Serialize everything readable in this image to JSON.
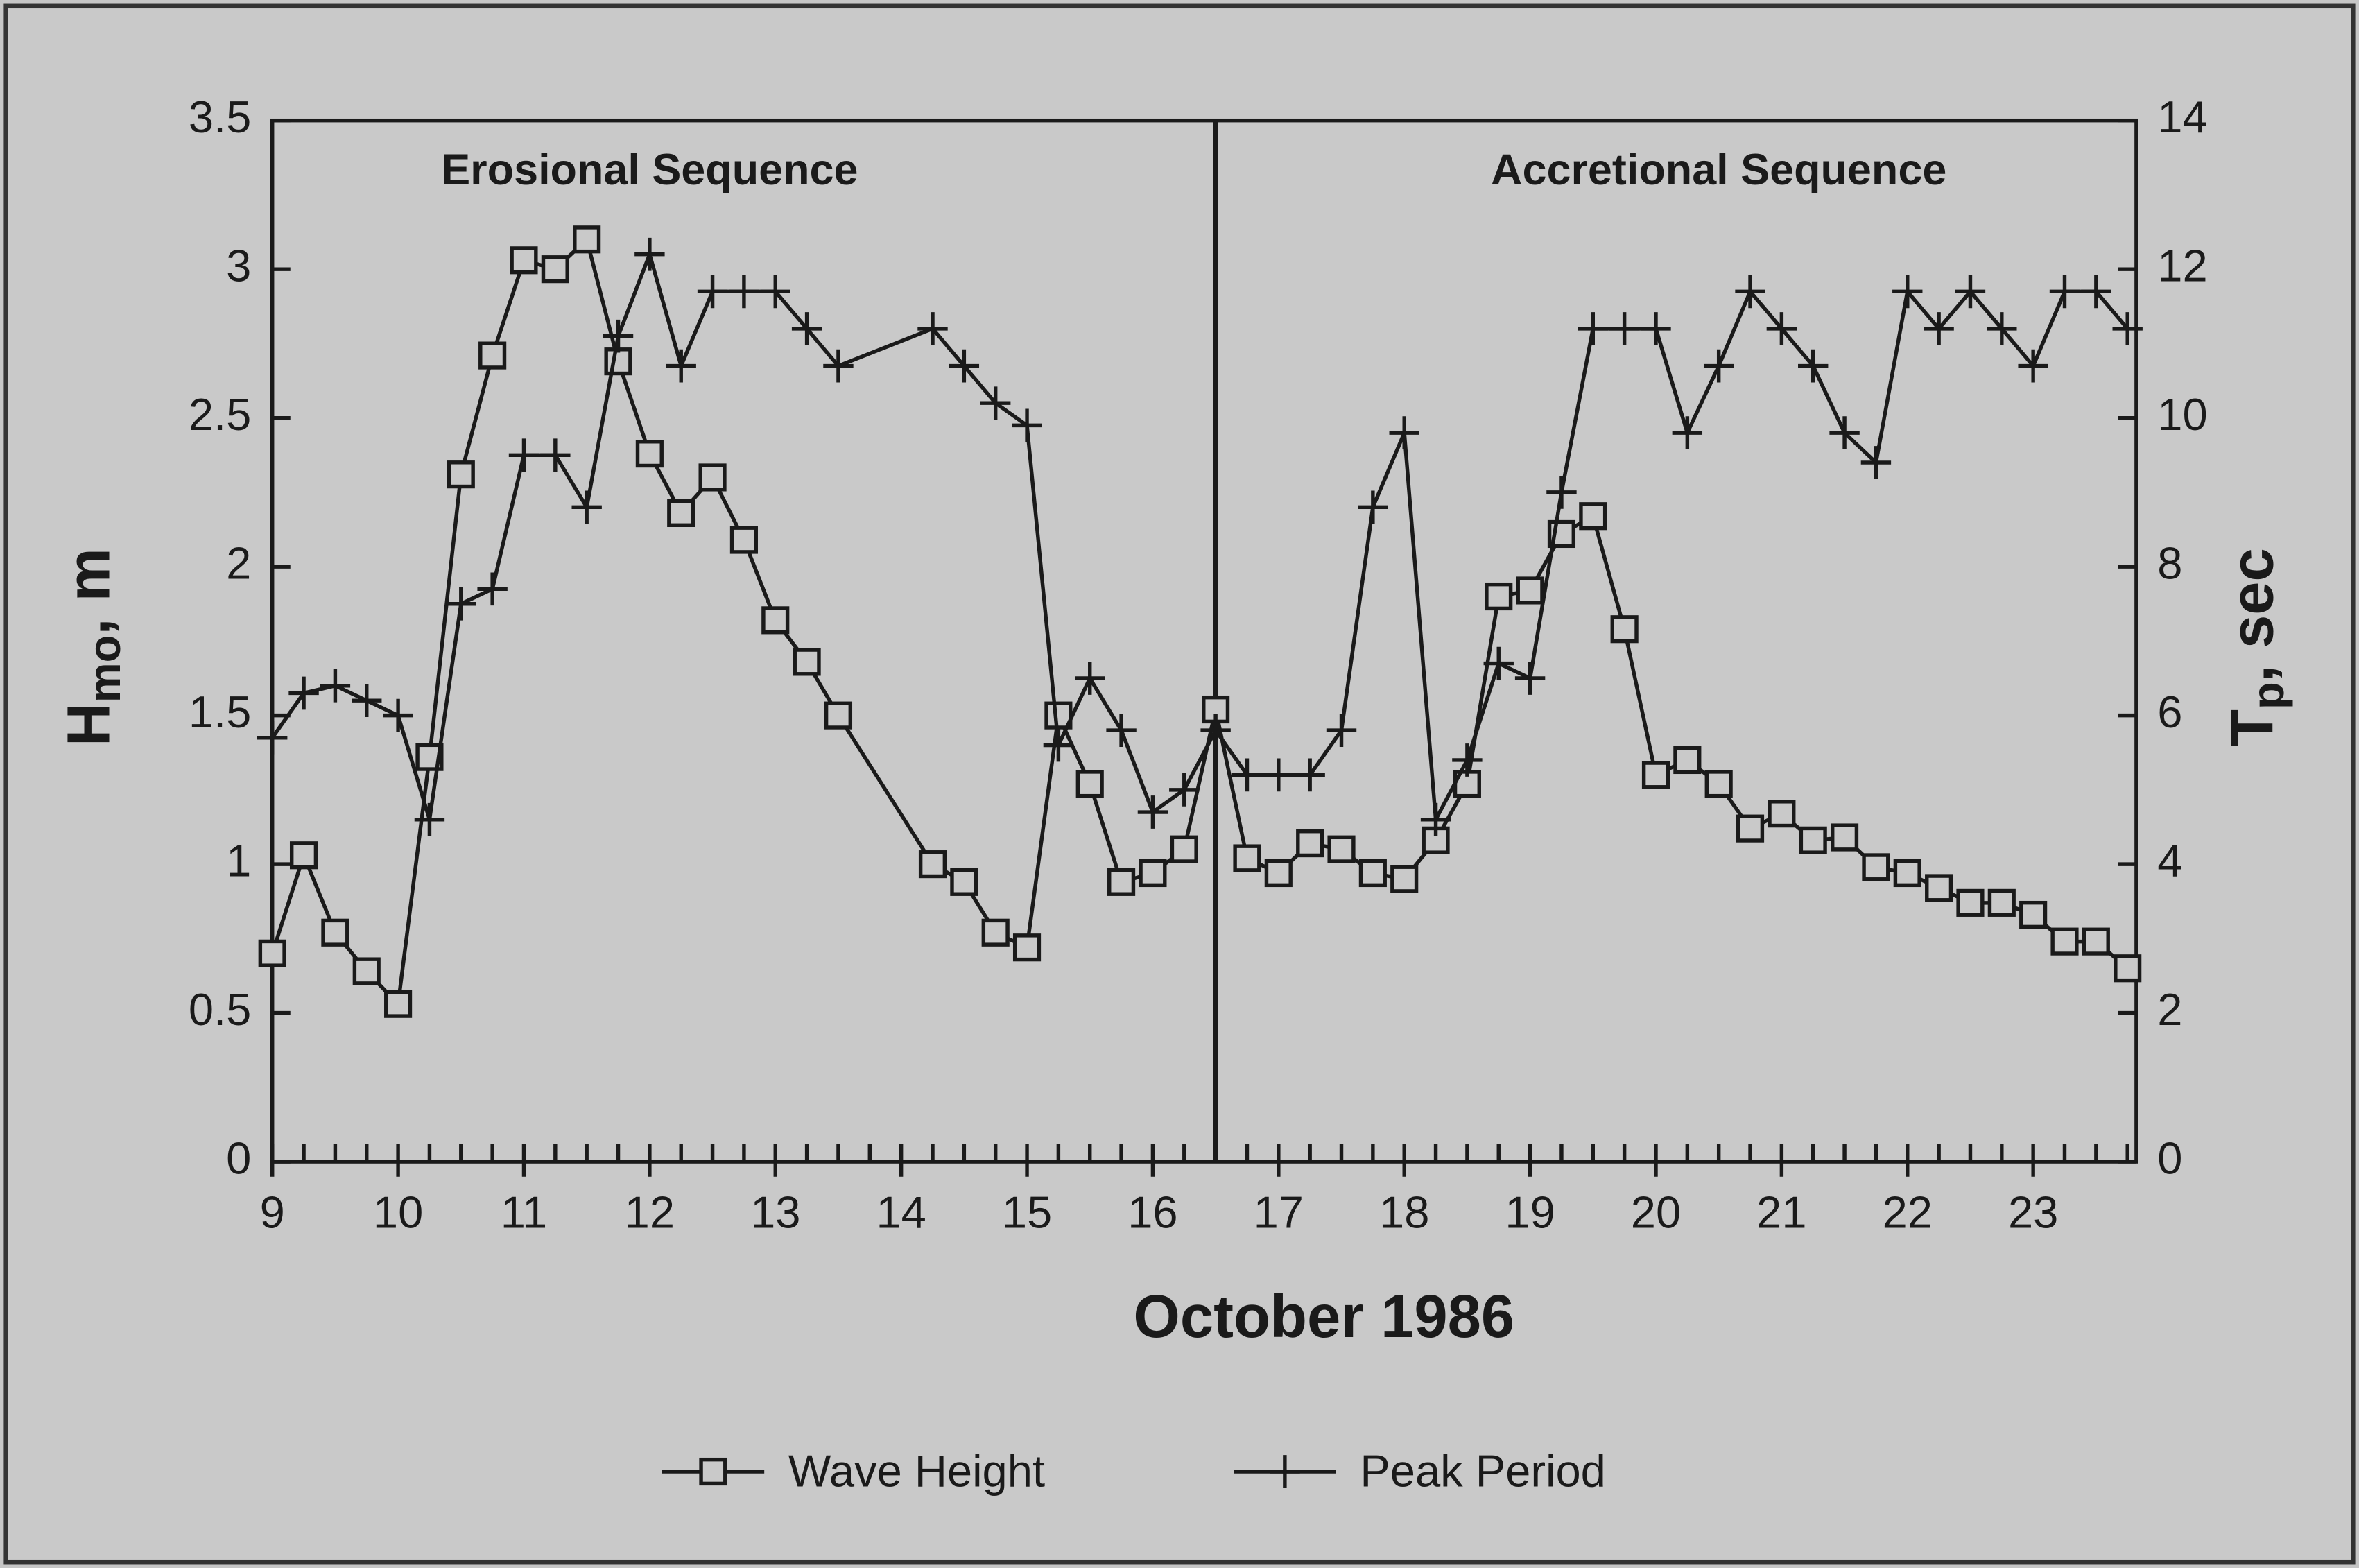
{
  "chart_data": {
    "type": "line",
    "x_label": "October 1986",
    "y_label": {
      "main": "H",
      "sub": "mo",
      "rest": ", m"
    },
    "y2_label": {
      "main": "T",
      "sub": "p",
      "rest": ", sec"
    },
    "annotations": [
      {
        "text": "Erosional Sequence",
        "x": 12.0
      },
      {
        "text": "Accretional Sequence",
        "x": 20.5
      }
    ],
    "divider_x": 16.5,
    "x": [
      9,
      9.25,
      9.5,
      9.75,
      10,
      10.25,
      10.5,
      10.75,
      11,
      11.25,
      11.5,
      11.75,
      12,
      12.25,
      12.5,
      12.75,
      13,
      13.25,
      13.5,
      14.25,
      14.5,
      14.75,
      15,
      15.25,
      15.5,
      15.75,
      16,
      16.25,
      16.5,
      16.75,
      17,
      17.25,
      17.5,
      17.75,
      18,
      18.25,
      18.5,
      18.75,
      19,
      19.25,
      19.5,
      19.75,
      20,
      20.25,
      20.5,
      20.75,
      21,
      21.25,
      21.5,
      21.75,
      22,
      22.25,
      22.5,
      22.75,
      23,
      23.25,
      23.5,
      23.75
    ],
    "series": [
      {
        "name": "Wave Height",
        "marker": "square",
        "color": "#1a1a1a",
        "axis": "y",
        "values": [
          0.7,
          1.03,
          0.77,
          0.64,
          0.53,
          1.36,
          2.31,
          2.71,
          3.03,
          3.0,
          3.1,
          2.69,
          2.38,
          2.18,
          2.3,
          2.09,
          1.82,
          1.68,
          1.5,
          1.0,
          0.94,
          0.77,
          0.72,
          1.5,
          1.27,
          0.94,
          0.97,
          1.05,
          1.52,
          1.02,
          0.97,
          1.07,
          1.05,
          0.97,
          0.95,
          1.08,
          1.27,
          1.9,
          1.92,
          2.11,
          2.17,
          1.79,
          1.3,
          1.35,
          1.27,
          1.12,
          1.17,
          1.08,
          1.09,
          0.99,
          0.97,
          0.92,
          0.87,
          0.87,
          0.83,
          0.74,
          0.74,
          0.65
        ]
      },
      {
        "name": "Peak Period",
        "marker": "plus",
        "color": "#1a1a1a",
        "axis": "y2",
        "values": [
          5.7,
          6.3,
          6.4,
          6.2,
          6.0,
          4.6,
          7.5,
          7.7,
          9.5,
          9.5,
          8.8,
          11.1,
          12.2,
          10.7,
          11.7,
          11.7,
          11.7,
          11.2,
          10.7,
          11.2,
          10.7,
          10.2,
          9.9,
          5.6,
          6.5,
          5.8,
          4.7,
          5.0,
          5.8,
          5.2,
          5.2,
          5.2,
          5.8,
          8.8,
          9.8,
          4.6,
          5.4,
          6.7,
          6.5,
          9.0,
          11.2,
          11.2,
          11.2,
          9.8,
          10.7,
          11.7,
          11.2,
          10.7,
          9.8,
          9.4,
          11.7,
          11.2,
          11.7,
          11.2,
          10.7,
          11.7,
          11.7,
          11.2
        ]
      }
    ],
    "xlim": [
      9,
      23.82
    ],
    "xticks": [
      9,
      10,
      11,
      12,
      13,
      14,
      15,
      16,
      17,
      18,
      19,
      20,
      21,
      22,
      23
    ],
    "xminor_step": 0.25,
    "ylim": [
      0,
      3.5
    ],
    "yticks": [
      0,
      0.5,
      1,
      1.5,
      2,
      2.5,
      3,
      3.5
    ],
    "y2lim": [
      0,
      14
    ],
    "y2ticks": [
      0,
      2,
      4,
      6,
      8,
      10,
      12,
      14
    ],
    "legend": "bottom"
  }
}
